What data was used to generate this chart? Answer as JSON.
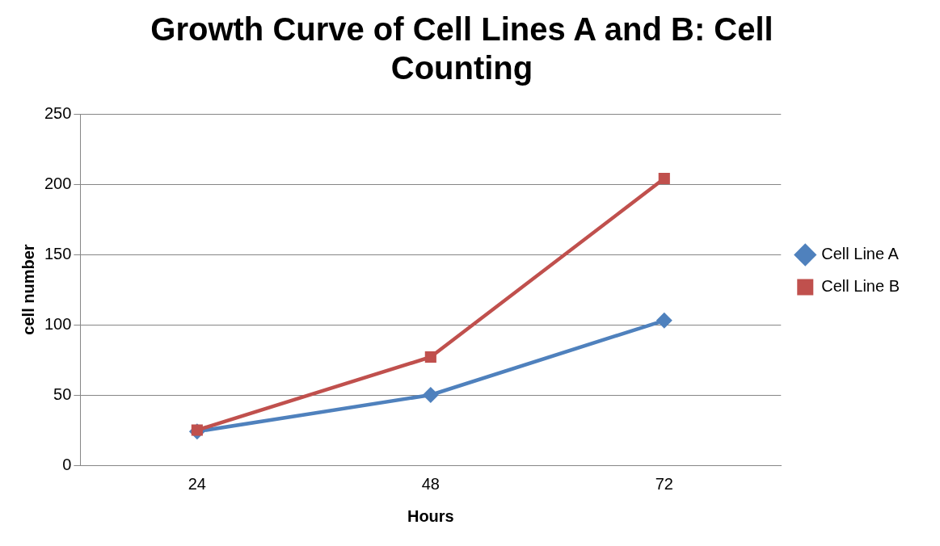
{
  "chart_data": {
    "type": "line",
    "title": "Growth Curve of Cell Lines A and B: Cell Counting",
    "xlabel": "Hours",
    "ylabel": "cell number",
    "categories": [
      "24",
      "48",
      "72"
    ],
    "series": [
      {
        "name": "Cell Line A",
        "color": "#4f81bd",
        "values": [
          24,
          50,
          103
        ],
        "marker": "diamond"
      },
      {
        "name": "Cell Line B",
        "color": "#c0504d",
        "values": [
          25,
          77,
          204
        ],
        "marker": "square"
      }
    ],
    "ylim": [
      0,
      250
    ],
    "yticks": [
      0,
      50,
      100,
      150,
      200,
      250
    ],
    "grid": "y",
    "legend": "right",
    "line_style": "solid"
  }
}
